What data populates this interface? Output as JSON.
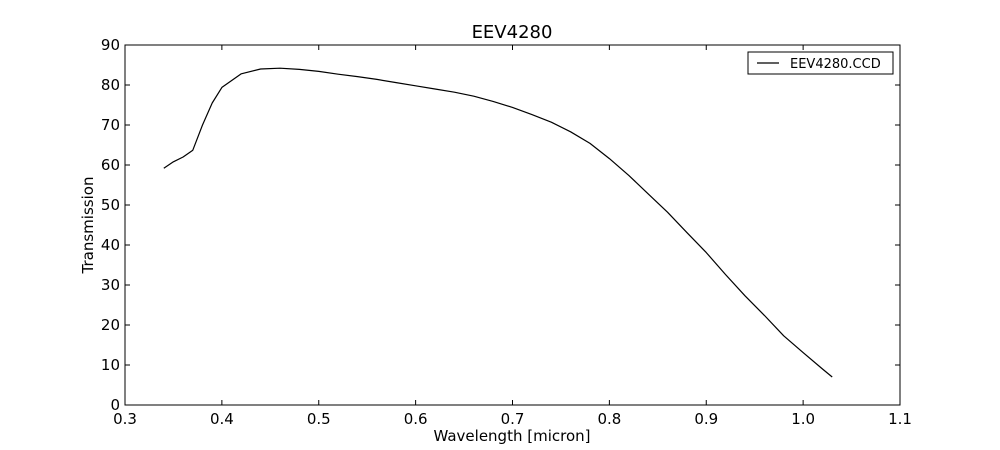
{
  "chart_data": {
    "type": "line",
    "title": "EEV4280",
    "xlabel": "Wavelength [micron]",
    "ylabel": "Transmission",
    "xlim": [
      0.3,
      1.1
    ],
    "ylim": [
      0,
      90
    ],
    "xticks": [
      "0.3",
      "0.4",
      "0.5",
      "0.6",
      "0.7",
      "0.8",
      "0.9",
      "1.0",
      "1.1"
    ],
    "yticks": [
      "0",
      "10",
      "20",
      "30",
      "40",
      "50",
      "60",
      "70",
      "80",
      "90"
    ],
    "grid": false,
    "legend_position": "top-right",
    "series": [
      {
        "name": "EEV4280.CCD",
        "color": "#000000",
        "x": [
          0.34,
          0.35,
          0.36,
          0.37,
          0.38,
          0.39,
          0.4,
          0.42,
          0.44,
          0.46,
          0.48,
          0.5,
          0.52,
          0.54,
          0.56,
          0.58,
          0.6,
          0.62,
          0.64,
          0.66,
          0.68,
          0.7,
          0.72,
          0.74,
          0.76,
          0.78,
          0.8,
          0.82,
          0.84,
          0.86,
          0.88,
          0.9,
          0.92,
          0.94,
          0.96,
          0.98,
          1.0,
          1.02,
          1.03
        ],
        "y": [
          59.2,
          60.8,
          62.0,
          63.7,
          70.0,
          75.5,
          79.4,
          82.8,
          84.0,
          84.2,
          83.9,
          83.4,
          82.7,
          82.1,
          81.4,
          80.6,
          79.8,
          79.0,
          78.2,
          77.2,
          75.9,
          74.4,
          72.6,
          70.7,
          68.3,
          65.4,
          61.6,
          57.4,
          52.8,
          48.2,
          43.1,
          38.1,
          32.6,
          27.3,
          22.4,
          17.3,
          13.1,
          9.0,
          7.0
        ]
      }
    ]
  }
}
